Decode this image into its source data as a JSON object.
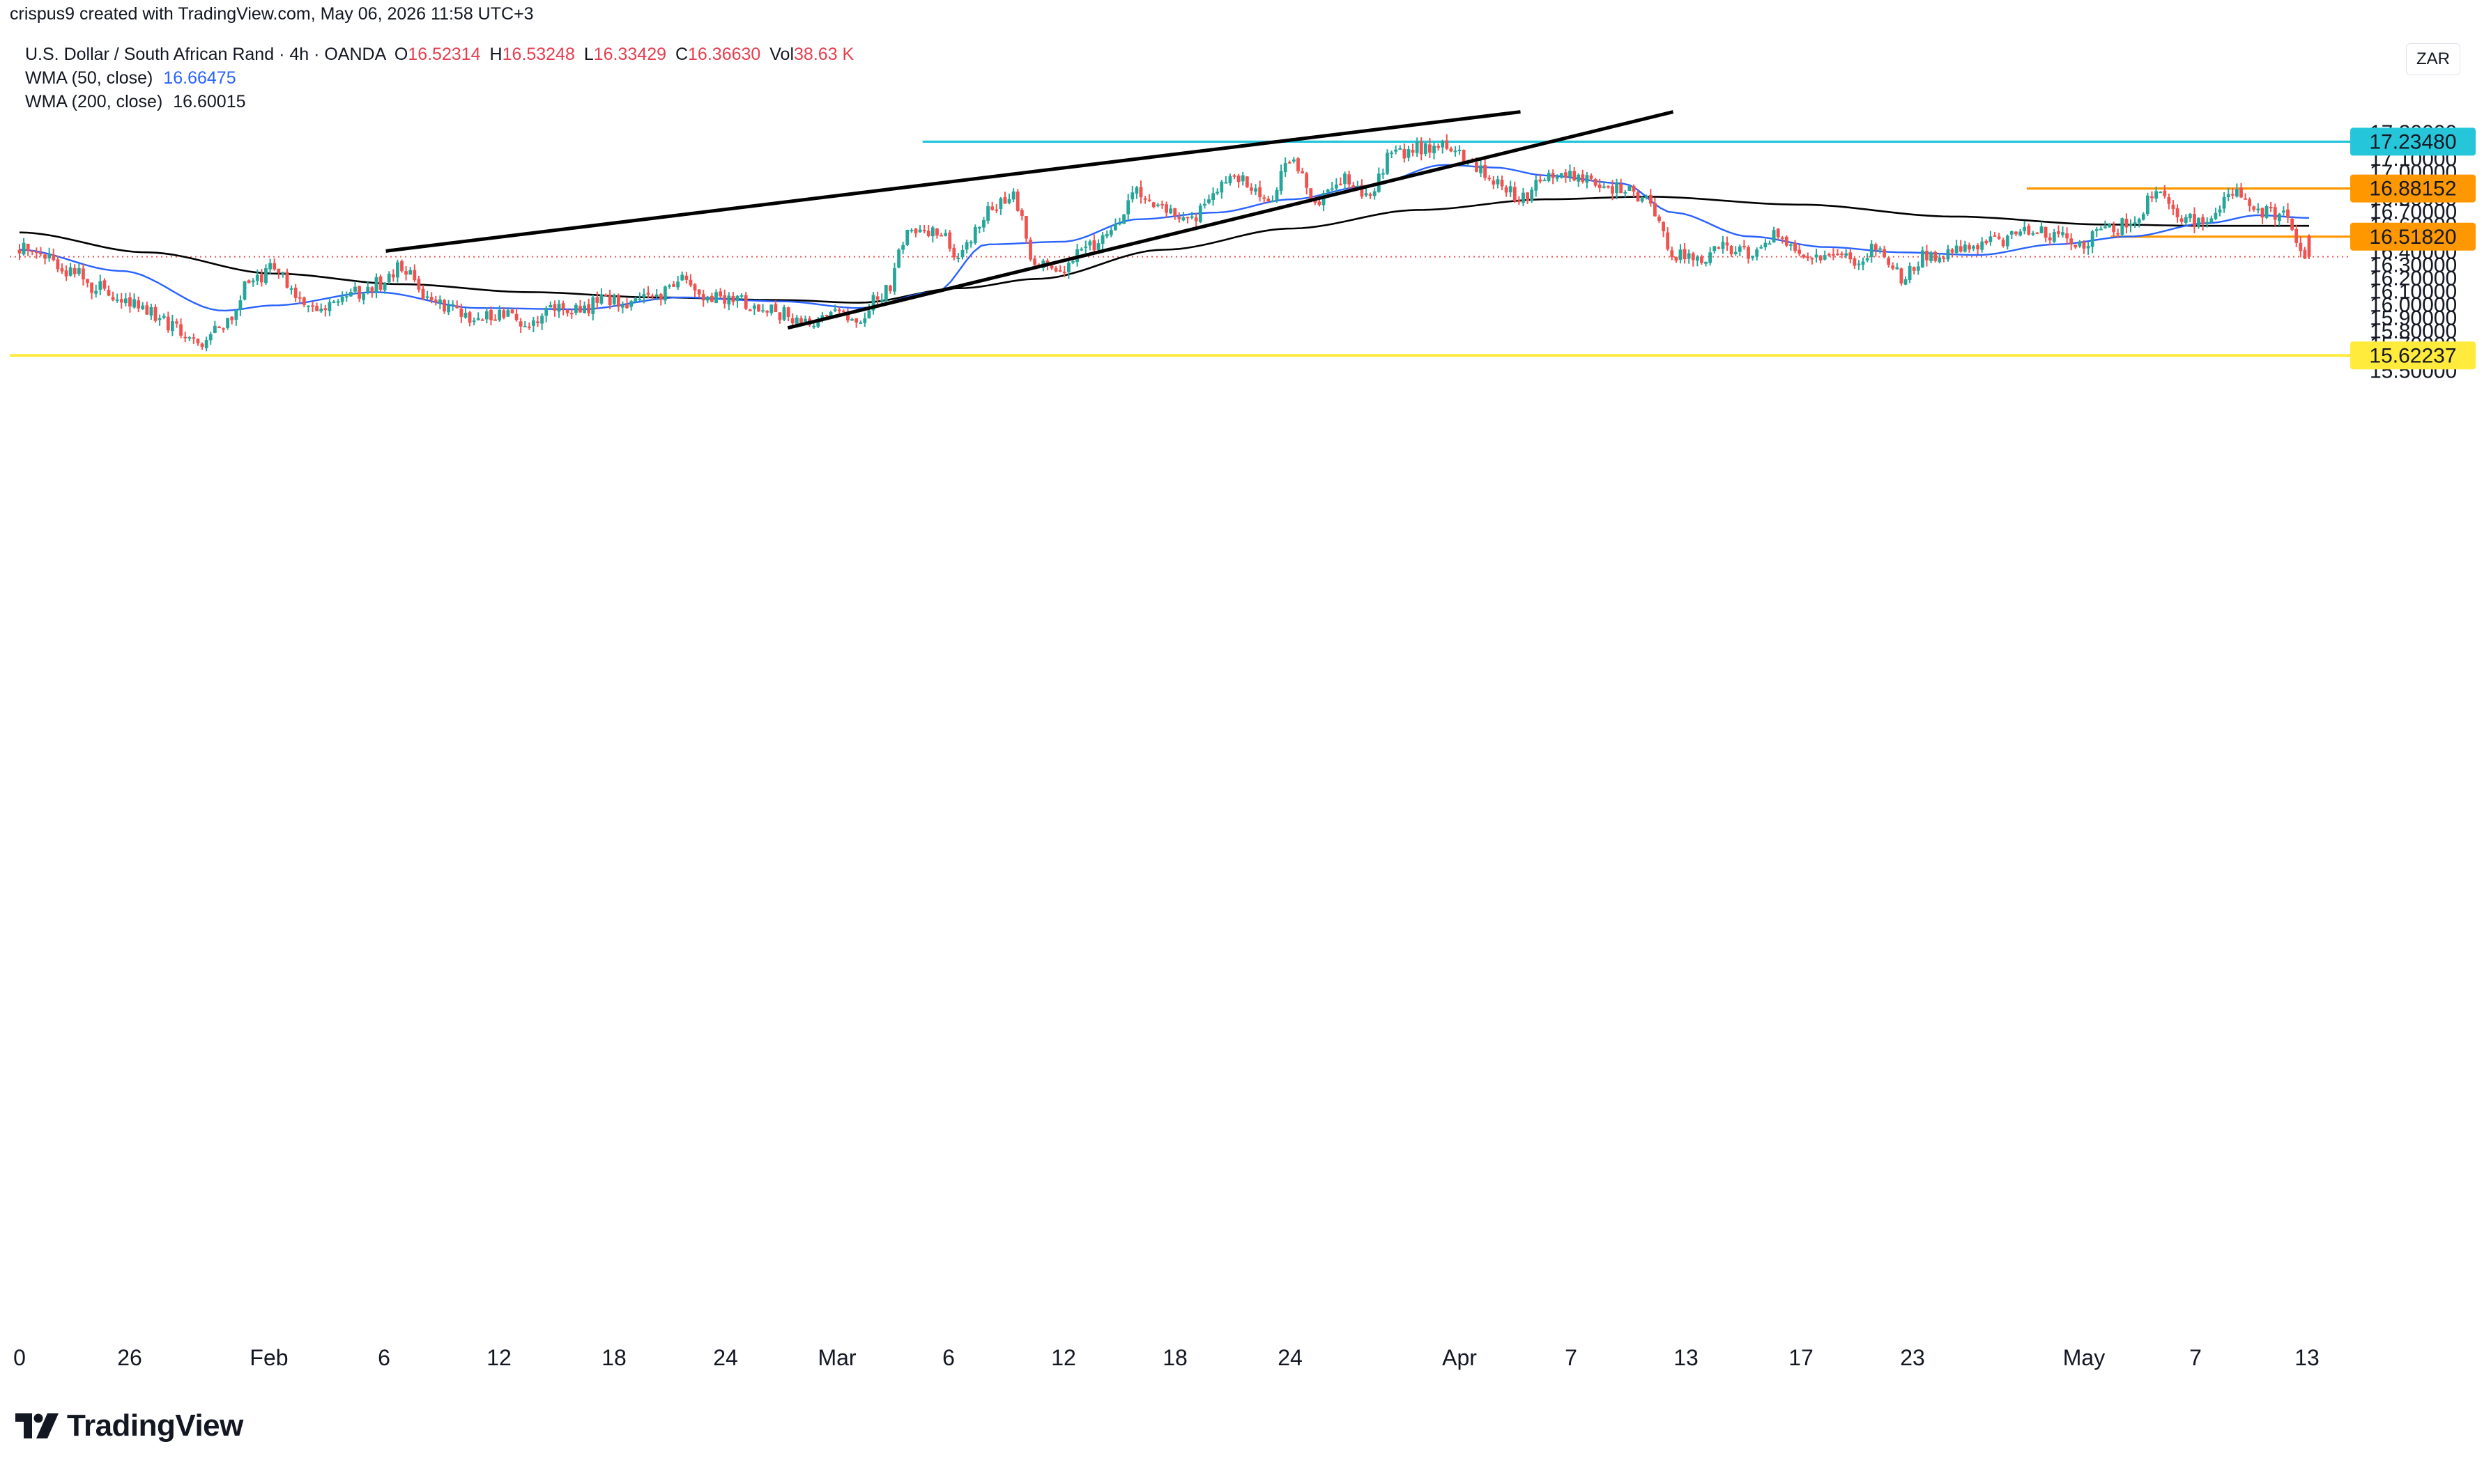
{
  "header": {
    "attribution": "crispus9 created with TradingView.com, May 06, 2026 11:58 UTC+3"
  },
  "legend": {
    "symbol": "U.S. Dollar / South African Rand · 4h · OANDA",
    "open_label": "O",
    "open": "16.52314",
    "high_label": "H",
    "high": "16.53248",
    "low_label": "L",
    "low": "16.33429",
    "close_label": "C",
    "close": "16.36630",
    "vol_label": "Vol",
    "vol": "38.63 K",
    "wma50_label": "WMA (50, close)",
    "wma50_value": "16.66475",
    "wma200_label": "WMA (200, close)",
    "wma200_value": "16.60015"
  },
  "currency": "ZAR",
  "brand": {
    "name": "TradingView",
    "icon": "tradingview-logo-icon"
  },
  "colors": {
    "up": "#26a69a",
    "down": "#ef5350",
    "wma50": "#2962ff",
    "wma200": "#000000",
    "level_teal": "#26c6da",
    "level_orange": "#ff9800",
    "level_yellow": "#ffeb3b",
    "current_price": "#ef5350"
  },
  "chart_data": {
    "type": "candlestick",
    "timeframe": "4h",
    "y_axis_ticks": [
      "17.30000",
      "17.20000",
      "17.10000",
      "17.00000",
      "16.90000",
      "16.80000",
      "16.70000",
      "16.60000",
      "16.50000",
      "16.40000",
      "16.30000",
      "16.20000",
      "16.10000",
      "16.00000",
      "15.90000",
      "15.80000",
      "15.70000",
      "15.60000",
      "15.50000"
    ],
    "ylim": [
      15.46,
      17.4
    ],
    "x_axis_labels": [
      "0",
      "26",
      "Feb",
      "6",
      "12",
      "18",
      "24",
      "Mar",
      "6",
      "12",
      "18",
      "24",
      "Apr",
      "7",
      "13",
      "17",
      "23",
      "May",
      "7",
      "13"
    ],
    "path_anchors": [
      {
        "d": 0,
        "p": 16.42
      },
      {
        "d": 1,
        "p": 16.38
      },
      {
        "d": 2,
        "p": 16.26
      },
      {
        "d": 3,
        "p": 16.14
      },
      {
        "d": 4,
        "p": 16.06
      },
      {
        "d": 5,
        "p": 15.96
      },
      {
        "d": 6,
        "p": 15.86
      },
      {
        "d": 7,
        "p": 15.7
      },
      {
        "d": 8,
        "p": 15.82
      },
      {
        "d": 9,
        "p": 16.16
      },
      {
        "d": 10,
        "p": 16.28
      },
      {
        "d": 11,
        "p": 16.04
      },
      {
        "d": 12,
        "p": 15.96
      },
      {
        "d": 13,
        "p": 16.08
      },
      {
        "d": 14,
        "p": 16.16
      },
      {
        "d": 15,
        "p": 16.28
      },
      {
        "d": 16,
        "p": 16.06
      },
      {
        "d": 17,
        "p": 15.99
      },
      {
        "d": 18,
        "p": 15.9
      },
      {
        "d": 19,
        "p": 15.94
      },
      {
        "d": 20,
        "p": 15.88
      },
      {
        "d": 21,
        "p": 15.99
      },
      {
        "d": 22,
        "p": 15.96
      },
      {
        "d": 23,
        "p": 16.06
      },
      {
        "d": 24,
        "p": 16.0
      },
      {
        "d": 25,
        "p": 16.06
      },
      {
        "d": 26,
        "p": 16.18
      },
      {
        "d": 27,
        "p": 16.06
      },
      {
        "d": 28,
        "p": 16.04
      },
      {
        "d": 29,
        "p": 16.0
      },
      {
        "d": 30,
        "p": 15.94
      },
      {
        "d": 31,
        "p": 15.85
      },
      {
        "d": 32,
        "p": 15.94
      },
      {
        "d": 33,
        "p": 15.92
      },
      {
        "d": 34,
        "p": 16.1
      },
      {
        "d": 35,
        "p": 16.55
      },
      {
        "d": 36,
        "p": 16.58
      },
      {
        "d": 37,
        "p": 16.38
      },
      {
        "d": 38,
        "p": 16.7
      },
      {
        "d": 39,
        "p": 16.82
      },
      {
        "d": 40,
        "p": 16.3
      },
      {
        "d": 41,
        "p": 16.26
      },
      {
        "d": 42,
        "p": 16.44
      },
      {
        "d": 43,
        "p": 16.58
      },
      {
        "d": 44,
        "p": 16.86
      },
      {
        "d": 45,
        "p": 16.74
      },
      {
        "d": 46,
        "p": 16.62
      },
      {
        "d": 47,
        "p": 16.88
      },
      {
        "d": 48,
        "p": 16.96
      },
      {
        "d": 49,
        "p": 16.78
      },
      {
        "d": 50,
        "p": 17.12
      },
      {
        "d": 51,
        "p": 16.78
      },
      {
        "d": 52,
        "p": 16.96
      },
      {
        "d": 53,
        "p": 16.86
      },
      {
        "d": 54,
        "p": 17.15
      },
      {
        "d": 55,
        "p": 17.18
      },
      {
        "d": 56,
        "p": 17.22
      },
      {
        "d": 57,
        "p": 17.08
      },
      {
        "d": 58,
        "p": 16.96
      },
      {
        "d": 59,
        "p": 16.8
      },
      {
        "d": 60,
        "p": 16.98
      },
      {
        "d": 61,
        "p": 17.0
      },
      {
        "d": 62,
        "p": 16.9
      },
      {
        "d": 63,
        "p": 16.88
      },
      {
        "d": 64,
        "p": 16.8
      },
      {
        "d": 65,
        "p": 16.38
      },
      {
        "d": 66,
        "p": 16.34
      },
      {
        "d": 67,
        "p": 16.44
      },
      {
        "d": 68,
        "p": 16.38
      },
      {
        "d": 69,
        "p": 16.54
      },
      {
        "d": 70,
        "p": 16.4
      },
      {
        "d": 71,
        "p": 16.34
      },
      {
        "d": 72,
        "p": 16.34
      },
      {
        "d": 73,
        "p": 16.42
      },
      {
        "d": 74,
        "p": 16.22
      },
      {
        "d": 75,
        "p": 16.38
      },
      {
        "d": 76,
        "p": 16.4
      },
      {
        "d": 77,
        "p": 16.44
      },
      {
        "d": 78,
        "p": 16.5
      },
      {
        "d": 79,
        "p": 16.58
      },
      {
        "d": 80,
        "p": 16.54
      },
      {
        "d": 81,
        "p": 16.46
      },
      {
        "d": 82,
        "p": 16.56
      },
      {
        "d": 83,
        "p": 16.62
      },
      {
        "d": 84,
        "p": 16.86
      },
      {
        "d": 85,
        "p": 16.66
      },
      {
        "d": 86,
        "p": 16.62
      },
      {
        "d": 87,
        "p": 16.85
      },
      {
        "d": 88,
        "p": 16.72
      },
      {
        "d": 89,
        "p": 16.66
      },
      {
        "d": 90,
        "p": 16.36
      }
    ],
    "wma50_anchors": [
      {
        "d": 0,
        "p": 16.42
      },
      {
        "d": 4,
        "p": 16.26
      },
      {
        "d": 8,
        "p": 15.96
      },
      {
        "d": 10,
        "p": 16.0
      },
      {
        "d": 14,
        "p": 16.1
      },
      {
        "d": 18,
        "p": 15.98
      },
      {
        "d": 22,
        "p": 15.97
      },
      {
        "d": 26,
        "p": 16.06
      },
      {
        "d": 30,
        "p": 16.03
      },
      {
        "d": 33,
        "p": 15.98
      },
      {
        "d": 36,
        "p": 16.1
      },
      {
        "d": 38,
        "p": 16.46
      },
      {
        "d": 41,
        "p": 16.48
      },
      {
        "d": 44,
        "p": 16.65
      },
      {
        "d": 47,
        "p": 16.7
      },
      {
        "d": 50,
        "p": 16.8
      },
      {
        "d": 53,
        "p": 16.9
      },
      {
        "d": 56,
        "p": 17.06
      },
      {
        "d": 58,
        "p": 17.04
      },
      {
        "d": 60,
        "p": 16.98
      },
      {
        "d": 63,
        "p": 16.92
      },
      {
        "d": 65,
        "p": 16.7
      },
      {
        "d": 68,
        "p": 16.52
      },
      {
        "d": 71,
        "p": 16.44
      },
      {
        "d": 74,
        "p": 16.4
      },
      {
        "d": 77,
        "p": 16.38
      },
      {
        "d": 80,
        "p": 16.46
      },
      {
        "d": 83,
        "p": 16.52
      },
      {
        "d": 86,
        "p": 16.62
      },
      {
        "d": 88,
        "p": 16.68
      },
      {
        "d": 90,
        "p": 16.66
      }
    ],
    "wma200_anchors": [
      {
        "d": 0,
        "p": 16.55
      },
      {
        "d": 5,
        "p": 16.4
      },
      {
        "d": 10,
        "p": 16.24
      },
      {
        "d": 15,
        "p": 16.16
      },
      {
        "d": 20,
        "p": 16.1
      },
      {
        "d": 25,
        "p": 16.06
      },
      {
        "d": 30,
        "p": 16.04
      },
      {
        "d": 33,
        "p": 16.02
      },
      {
        "d": 37,
        "p": 16.13
      },
      {
        "d": 40,
        "p": 16.2
      },
      {
        "d": 45,
        "p": 16.42
      },
      {
        "d": 50,
        "p": 16.58
      },
      {
        "d": 55,
        "p": 16.72
      },
      {
        "d": 60,
        "p": 16.8
      },
      {
        "d": 64,
        "p": 16.82
      },
      {
        "d": 70,
        "p": 16.76
      },
      {
        "d": 76,
        "p": 16.67
      },
      {
        "d": 82,
        "p": 16.61
      },
      {
        "d": 86,
        "p": 16.6
      },
      {
        "d": 90,
        "p": 16.6
      }
    ],
    "horizontal_levels": [
      {
        "price": 17.2348,
        "label": "17.23480",
        "color": "#26c6da",
        "start_day": 35.5
      },
      {
        "price": 16.88152,
        "label": "16.88152",
        "color": "#ff9800",
        "start_day": 78.9
      },
      {
        "price": 16.5182,
        "label": "16.51820",
        "color": "#ff9800",
        "start_day": 82.2
      },
      {
        "price": 15.62237,
        "label": "15.62237",
        "color": "#ffeb3b",
        "start_day": -1
      }
    ],
    "current_price": 16.3663,
    "trendlines": [
      {
        "from": {
          "d": 14.4,
          "p": 16.41
        },
        "to": {
          "d": 59.0,
          "p": 17.46
        }
      },
      {
        "from": {
          "d": 30.2,
          "p": 15.83
        },
        "to": {
          "d": 65.0,
          "p": 17.46
        }
      }
    ]
  }
}
